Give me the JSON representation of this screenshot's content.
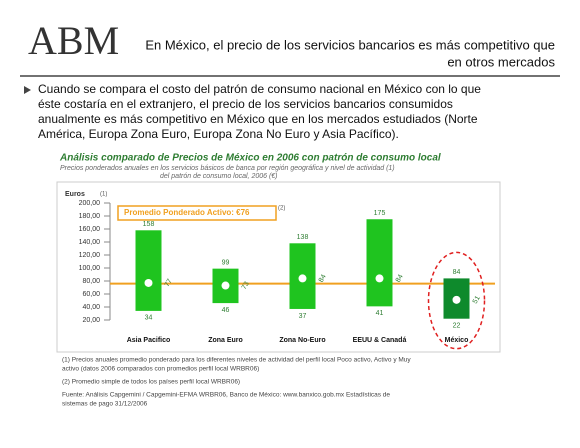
{
  "header": {
    "logo": "ABM",
    "title_lines": [
      "En México, el precio de los servicios bancarios es más competitivo que",
      "en otros mercados"
    ]
  },
  "bullet_lines": [
    "Cuando se compara el costo del patrón de consumo nacional en México con lo que",
    "éste costaría en el extranjero, el precio de los servicios bancarios consumidos",
    "anualmente es más competitivo en México que en los mercados estudiados (Norte",
    "América, Europa Zona Euro, Europa Zona No Euro y Asia Pacífico)."
  ],
  "chart_data": {
    "type": "range-bar",
    "title": "Análisis comparado de Precios de México en 2006 con patrón de consumo local",
    "subtitle_lines": [
      "Precios ponderados anuales en los servicios básicos de banca por región geográfica y nivel de actividad (1)",
      "del patrón de consumo local, 2006 (€)"
    ],
    "y_label": "Euros",
    "y_label_note": "(1)",
    "categories": [
      "Asia Pacifico",
      "Zona Euro",
      "Zona No-Euro",
      "EEUU & Canadá",
      "México"
    ],
    "low": [
      34,
      46,
      37,
      41,
      22
    ],
    "high": [
      158,
      99,
      138,
      175,
      84
    ],
    "mid": [
      77,
      73,
      84,
      84,
      51
    ],
    "colors": [
      "#1fc41f",
      "#1fc41f",
      "#1fc41f",
      "#1fc41f",
      "#0e8a2c"
    ],
    "highlight": "México",
    "average": {
      "value": 76,
      "label": "Promedio Ponderado Activo: €76",
      "note": "(2)",
      "color": "#f0a020"
    },
    "ylim": [
      20,
      200
    ],
    "yticks": [
      {
        "value": 20,
        "label": "20,00"
      },
      {
        "value": 40,
        "label": "40,00"
      },
      {
        "value": 60,
        "label": "60,00"
      },
      {
        "value": 80,
        "label": "80,00"
      },
      {
        "value": 100,
        "label": "100,00"
      },
      {
        "value": 120,
        "label": "120,00"
      },
      {
        "value": 140,
        "label": "140,00"
      },
      {
        "value": 160,
        "label": "160,00"
      },
      {
        "value": 180,
        "label": "180,00"
      },
      {
        "value": 200,
        "label": "200,00"
      }
    ],
    "footnotes": [
      "(1) Precios anuales promedio ponderado para los diferentes niveles de actividad del perfil local Poco activo, Activo y Muy",
      "activo (datos 2006 comparados con promedios perfil local WRBR06)",
      "(2) Promedio simple de todos los países perfil local WRBR06)",
      "Fuente: Análisis Capgemini / Capgemini-EFMA WRBR06, Banco de México: www.banxico.gob.mx Estadísticas de",
      "sistemas de pago 31/12/2006"
    ]
  }
}
